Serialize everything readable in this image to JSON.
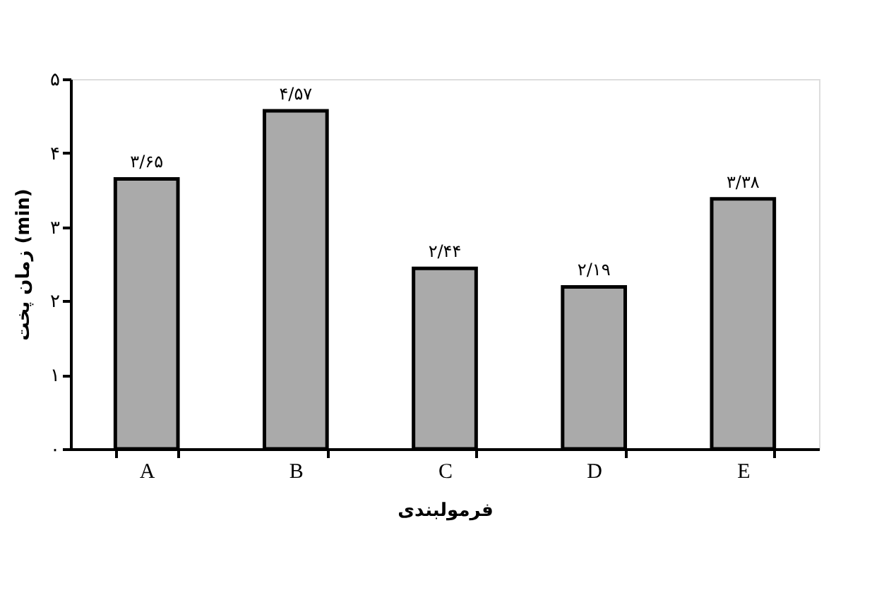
{
  "chart_data": {
    "type": "bar",
    "categories": [
      "A",
      "B",
      "C",
      "D",
      "E"
    ],
    "values": [
      3.65,
      4.57,
      2.44,
      2.19,
      3.38
    ],
    "value_labels": [
      "۳/۶۵",
      "۴/۵۷",
      "۲/۴۴",
      "۲/۱۹",
      "۳/۳۸"
    ],
    "color": "#aaaaaa",
    "xlabel": "فرمولبندی",
    "ylabel": "زمان پخت (min)",
    "ylim": [
      0,
      5
    ],
    "yticks": [
      {
        "value": 0,
        "label": "۰"
      },
      {
        "value": 1,
        "label": "۱"
      },
      {
        "value": 2,
        "label": "۲"
      },
      {
        "value": 3,
        "label": "۳"
      },
      {
        "value": 4,
        "label": "۴"
      },
      {
        "value": 5,
        "label": "۵"
      }
    ],
    "grid": false
  }
}
